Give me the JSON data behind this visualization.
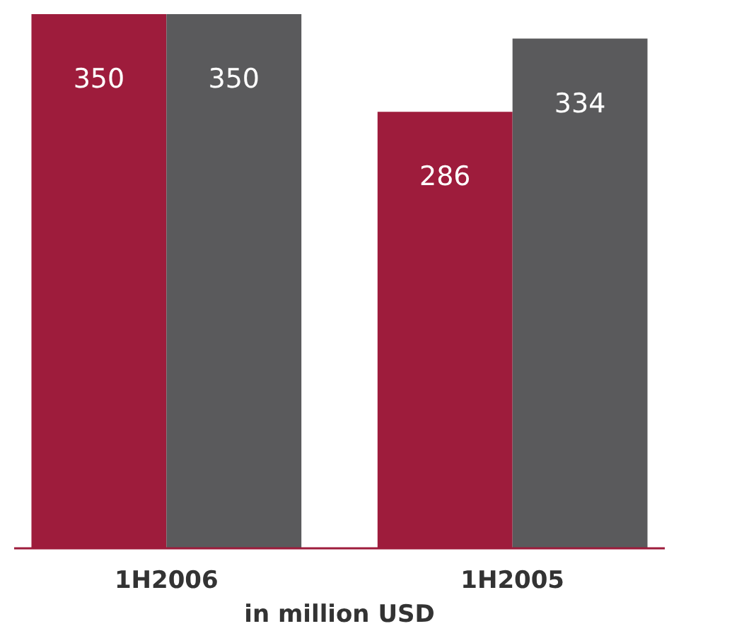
{
  "chart_data": {
    "type": "bar",
    "categories": [
      "1H2006",
      "1H2005"
    ],
    "xlabel": "in million USD",
    "series": [
      {
        "color": "#9e1c3c",
        "values": [
          350,
          286
        ]
      },
      {
        "color": "#5a5a5c",
        "values": [
          350,
          334
        ]
      }
    ],
    "data_labels": true
  }
}
